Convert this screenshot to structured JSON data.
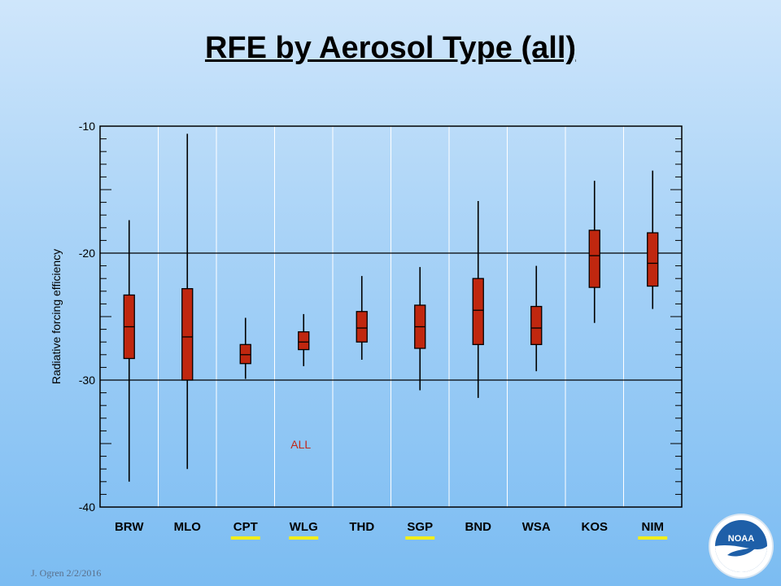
{
  "slide": {
    "title": "RFE by Aerosol Type (all)",
    "footer": "J. Ogren  2/2/2016"
  },
  "logo": {
    "text": "NOAA"
  },
  "colors": {
    "box_fill": "#c0270f",
    "highlight_underline": "#f2ee1a",
    "annotation": "#c0281a"
  },
  "chart_data": {
    "type": "box",
    "title": "",
    "xlabel": "",
    "ylabel": "Radiative forcing efficiency",
    "ylim": [
      -40,
      -10
    ],
    "yticks": [
      -10,
      -20,
      -30,
      -40
    ],
    "grid": true,
    "annotation": "ALL",
    "categories": [
      "BRW",
      "MLO",
      "CPT",
      "WLG",
      "THD",
      "SGP",
      "BND",
      "WSA",
      "KOS",
      "NIM"
    ],
    "highlighted": [
      "CPT",
      "WLG",
      "SGP",
      "NIM"
    ],
    "boxes": [
      {
        "name": "BRW",
        "whisker_low": -38.0,
        "q1": -28.3,
        "median": -25.8,
        "q3": -23.3,
        "whisker_high": -17.4
      },
      {
        "name": "MLO",
        "whisker_low": -37.0,
        "q1": -30.0,
        "median": -26.6,
        "q3": -22.8,
        "whisker_high": -10.6
      },
      {
        "name": "CPT",
        "whisker_low": -29.9,
        "q1": -28.7,
        "median": -28.0,
        "q3": -27.2,
        "whisker_high": -25.1
      },
      {
        "name": "WLG",
        "whisker_low": -28.9,
        "q1": -27.6,
        "median": -27.0,
        "q3": -26.2,
        "whisker_high": -24.8
      },
      {
        "name": "THD",
        "whisker_low": -28.4,
        "q1": -27.0,
        "median": -25.9,
        "q3": -24.6,
        "whisker_high": -21.8
      },
      {
        "name": "SGP",
        "whisker_low": -30.8,
        "q1": -27.5,
        "median": -25.8,
        "q3": -24.1,
        "whisker_high": -21.1
      },
      {
        "name": "BND",
        "whisker_low": -31.4,
        "q1": -27.2,
        "median": -24.5,
        "q3": -22.0,
        "whisker_high": -15.9
      },
      {
        "name": "WSA",
        "whisker_low": -29.3,
        "q1": -27.2,
        "median": -25.9,
        "q3": -24.2,
        "whisker_high": -21.0
      },
      {
        "name": "KOS",
        "whisker_low": -25.5,
        "q1": -22.7,
        "median": -20.2,
        "q3": -18.2,
        "whisker_high": -14.3
      },
      {
        "name": "NIM",
        "whisker_low": -24.4,
        "q1": -22.6,
        "median": -20.8,
        "q3": -18.4,
        "whisker_high": -13.5
      }
    ]
  }
}
